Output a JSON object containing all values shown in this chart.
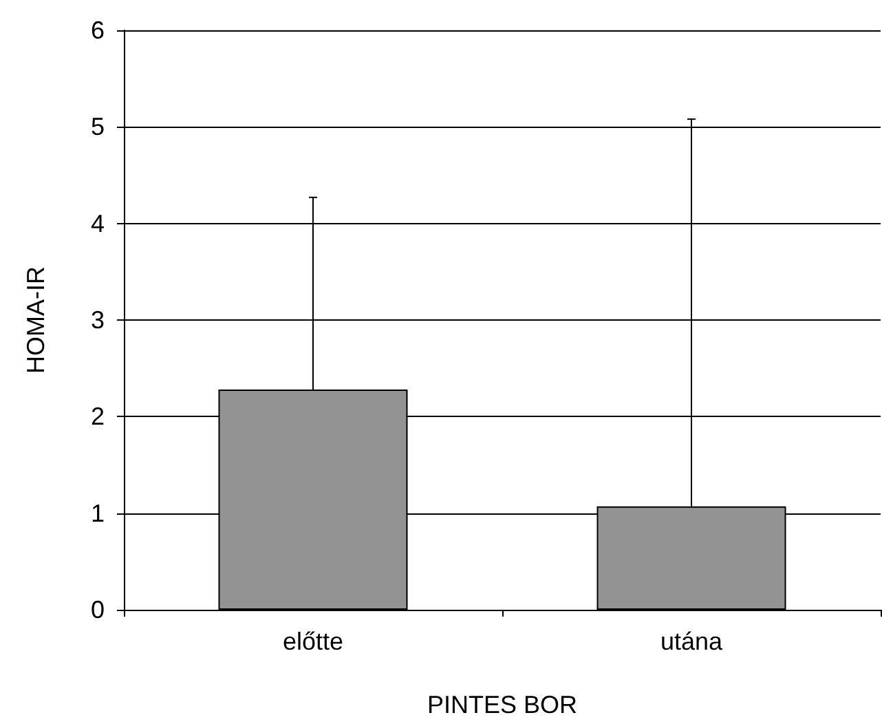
{
  "chart_data": {
    "type": "bar",
    "xlabel": "PINTES BOR",
    "ylabel": "HOMA-IR",
    "categories": [
      "előtte",
      "utána"
    ],
    "values": [
      2.28,
      1.07
    ],
    "errors": [
      [
        2.28,
        4.27
      ],
      [
        1.07,
        5.08
      ]
    ],
    "color": "#939393",
    "ylim": [
      0,
      6
    ],
    "yticks": [
      0,
      1,
      2,
      3,
      4,
      5,
      6
    ],
    "grid": "y"
  }
}
